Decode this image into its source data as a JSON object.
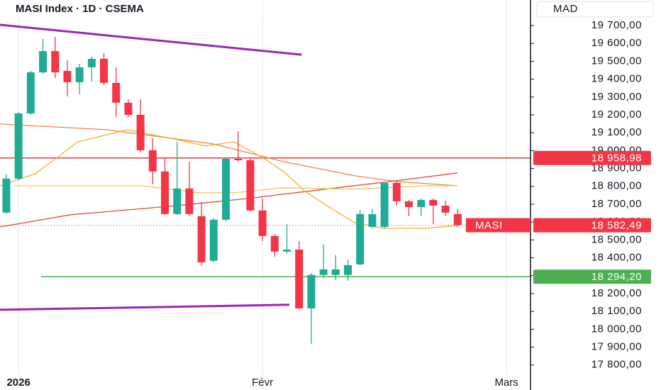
{
  "chart_data": {
    "type": "candlestick",
    "title": "MASI Index · 1D · CSEMA",
    "y_unit": "MAD",
    "categories": [
      null,
      "2026",
      null,
      null,
      null,
      null,
      null,
      null,
      null,
      null,
      null,
      null,
      null,
      null,
      null,
      null,
      null,
      null,
      null,
      null,
      null,
      "Févr",
      null,
      null,
      null,
      null,
      null,
      null,
      null,
      null,
      null,
      null,
      null,
      null,
      null,
      null,
      null,
      null,
      null,
      null,
      null,
      "Mars"
    ],
    "open": [
      18653,
      18843,
      19208,
      19438,
      19557,
      19446,
      19383,
      19466,
      19514,
      19379,
      19268,
      19200,
      19002,
      18883,
      18645,
      18788,
      18633,
      18383,
      18613,
      18954,
      18946,
      18665,
      18522,
      18435,
      18446,
      18117,
      18304,
      18304,
      18304,
      18363,
      18573,
      18573,
      18819,
      18716,
      18684,
      18724,
      18692,
      18645,
      null,
      null,
      null,
      null
    ],
    "high": [
      18867,
      19216,
      19446,
      19625,
      19637,
      19506,
      19486,
      19525,
      19545,
      19466,
      19287,
      19287,
      19069,
      18962,
      19049,
      18938,
      18712,
      18621,
      18962,
      19109,
      18954,
      18732,
      18534,
      18589,
      18494,
      18316,
      18474,
      18415,
      18391,
      18669,
      18673,
      18827,
      18827,
      18724,
      18732,
      18732,
      18720,
      18673,
      null,
      null,
      null,
      null
    ],
    "low": [
      18645,
      18835,
      19200,
      19430,
      19406,
      19303,
      19315,
      19387,
      19367,
      19188,
      19188,
      18990,
      18811,
      18641,
      18641,
      18633,
      18355,
      18375,
      18605,
      18938,
      18661,
      18494,
      18407,
      18423,
      18113,
      17919,
      18288,
      18276,
      18272,
      18359,
      18565,
      18565,
      18692,
      18633,
      18633,
      18589,
      18633,
      18573,
      null,
      null,
      null,
      null
    ],
    "close": [
      18843,
      19208,
      19438,
      19557,
      19438,
      19383,
      19466,
      19514,
      19379,
      19268,
      19200,
      19002,
      18883,
      18645,
      18788,
      18645,
      18375,
      18613,
      18954,
      18946,
      18665,
      18522,
      18435,
      18446,
      18117,
      18304,
      18335,
      18335,
      18359,
      18645,
      18645,
      18819,
      18716,
      18684,
      18724,
      18692,
      18653,
      18582.49,
      null,
      null,
      null,
      null
    ],
    "up_color": "#22ab94",
    "down_color": "#f23645",
    "xlim": [
      -0.52,
      42.97
    ],
    "ylim": [
      17660,
      19843
    ],
    "yticks": [
      {
        "value": 19700,
        "label": "19 700,00"
      },
      {
        "value": 19600,
        "label": "19 600,00"
      },
      {
        "value": 19500,
        "label": "19 500,00"
      },
      {
        "value": 19400,
        "label": "19 400,00"
      },
      {
        "value": 19300,
        "label": "19 300,00"
      },
      {
        "value": 19200,
        "label": "19 200,00"
      },
      {
        "value": 19100,
        "label": "19 100,00"
      },
      {
        "value": 19000,
        "label": "19 000,00"
      },
      {
        "value": 18900,
        "label": "18 900,00"
      },
      {
        "value": 18800,
        "label": "18 800,00"
      },
      {
        "value": 18700,
        "label": "18 700,00"
      },
      {
        "value": 18600,
        "label": "18 600,00"
      },
      {
        "value": 18500,
        "label": "18 500,00"
      },
      {
        "value": 18400,
        "label": "18 400,00"
      },
      {
        "value": 18300,
        "label": "18 300,00"
      },
      {
        "value": 18200,
        "label": "18 200,00"
      },
      {
        "value": 18100,
        "label": "18 100,00"
      },
      {
        "value": 18000,
        "label": "18 000,00"
      },
      {
        "value": 17900,
        "label": "17 900,00"
      },
      {
        "value": 17800,
        "label": "17 800,00"
      }
    ],
    "lines": [
      {
        "color": "#f5813f",
        "x": [
          -0.52,
          8.2,
          16.92,
          22.73,
          28.55,
          32.03,
          36.98
        ],
        "values": [
          19149,
          19117,
          19038,
          18938,
          18859,
          18827,
          18803
        ]
      },
      {
        "color": "#e0473f",
        "x": [
          -0.52,
          5.29,
          14.01,
          19.83,
          25.64,
          31.45,
          36.98
        ],
        "values": [
          18573,
          18641,
          18692,
          18732,
          18780,
          18827,
          18875
        ]
      },
      {
        "color": "#f0b429",
        "x": [
          -0.52,
          2.38,
          5.87,
          9.94,
          13.43,
          16.34,
          18.66,
          20.99,
          22.73,
          24.48,
          26.8,
          28.55,
          30.87,
          34.36,
          36.98
        ],
        "values": [
          18803,
          18871,
          19049,
          19117,
          19069,
          19026,
          19049,
          18962,
          18883,
          18772,
          18669,
          18597,
          18565,
          18565,
          18581
        ]
      },
      {
        "color": "#f2c45a",
        "x": [
          0.64,
          11.1,
          15.76,
          18.66,
          22.73,
          28.55,
          34.36,
          36.98
        ],
        "values": [
          18803,
          18803,
          18764,
          18764,
          18792,
          18784,
          18803,
          18803
        ]
      }
    ],
    "trendlines": [
      {
        "color": "#9c27b0",
        "x": [
          -0.52,
          24.2
        ],
        "values": [
          19704,
          19537
        ]
      },
      {
        "color": "#9c27b0",
        "x": [
          -0.52,
          23.2
        ],
        "values": [
          18109,
          18137
        ]
      }
    ],
    "hlines": [
      {
        "value": 18958.98,
        "label": "18 958,98",
        "color": "#f23645",
        "x_start": -0.52
      },
      {
        "value": 18294.2,
        "label": "18 294,20",
        "color": "#4caf50",
        "x_start": 2.85
      }
    ],
    "last_price": {
      "name": "MASI",
      "value": 18582.49,
      "label": "18 582,49",
      "color": "#f23645"
    }
  }
}
